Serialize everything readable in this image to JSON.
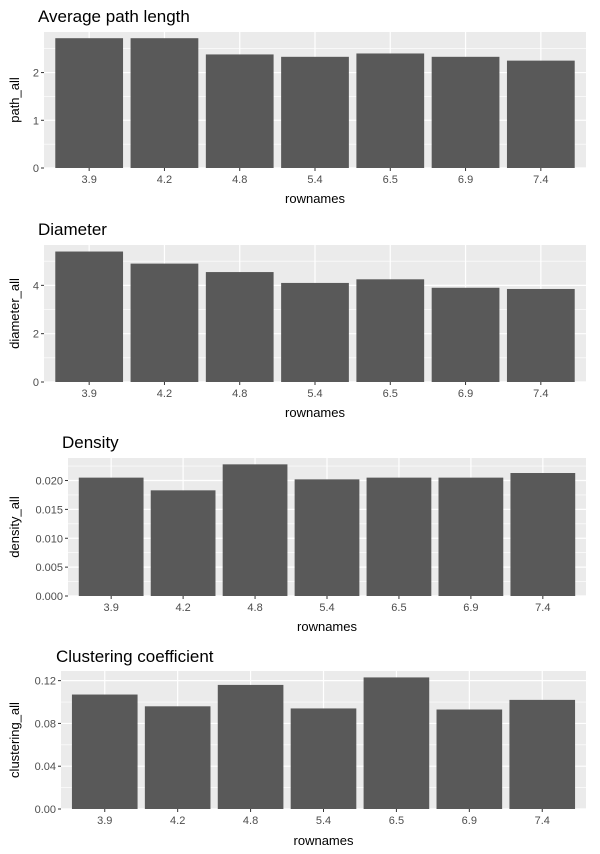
{
  "figure": {
    "background": "#ffffff"
  },
  "theme": {
    "panel_bg": "#ebebeb",
    "grid_major": "#ffffff",
    "grid_minor": "#f3f3f3",
    "bar_fill": "#595959",
    "tick_color": "#333333"
  },
  "chart_data": [
    {
      "type": "bar",
      "title": "Average path length",
      "xlabel": "rownames",
      "ylabel": "path_all",
      "categories": [
        "3.9",
        "4.2",
        "4.8",
        "5.4",
        "6.5",
        "6.9",
        "7.4"
      ],
      "values": [
        2.72,
        2.72,
        2.38,
        2.33,
        2.4,
        2.33,
        2.25
      ],
      "ylim": [
        0,
        2.85
      ],
      "yticks": [
        0,
        1,
        2
      ],
      "ytick_labels": [
        "0",
        "1",
        "2"
      ],
      "grid": true,
      "legend": "none"
    },
    {
      "type": "bar",
      "title": "Diameter",
      "xlabel": "rownames",
      "ylabel": "diameter_all",
      "categories": [
        "3.9",
        "4.2",
        "4.8",
        "5.4",
        "6.5",
        "6.9",
        "7.4"
      ],
      "values": [
        5.4,
        4.9,
        4.55,
        4.1,
        4.25,
        3.9,
        3.85
      ],
      "ylim": [
        0,
        5.67
      ],
      "yticks": [
        0,
        2,
        4
      ],
      "ytick_labels": [
        "0",
        "2",
        "4"
      ],
      "grid": true,
      "legend": "none"
    },
    {
      "type": "bar",
      "title": "Density",
      "xlabel": "rownames",
      "ylabel": "density_all",
      "categories": [
        "3.9",
        "4.2",
        "4.8",
        "5.4",
        "6.5",
        "6.9",
        "7.4"
      ],
      "values": [
        0.0205,
        0.0183,
        0.0228,
        0.0202,
        0.0205,
        0.0205,
        0.0213
      ],
      "ylim": [
        0,
        0.0239
      ],
      "yticks": [
        0,
        0.005,
        0.01,
        0.015,
        0.02
      ],
      "ytick_labels": [
        "0.000",
        "0.005",
        "0.010",
        "0.015",
        "0.020"
      ],
      "grid": true,
      "legend": "none"
    },
    {
      "type": "bar",
      "title": "Clustering coefficient",
      "xlabel": "rownames",
      "ylabel": "clustering_all",
      "categories": [
        "3.9",
        "4.2",
        "4.8",
        "5.4",
        "6.5",
        "6.9",
        "7.4"
      ],
      "values": [
        0.107,
        0.096,
        0.116,
        0.094,
        0.123,
        0.093,
        0.102
      ],
      "ylim": [
        0,
        0.129
      ],
      "yticks": [
        0,
        0.04,
        0.08,
        0.12
      ],
      "ytick_labels": [
        "0.00",
        "0.04",
        "0.08",
        "0.12"
      ],
      "grid": true,
      "legend": "none"
    }
  ]
}
